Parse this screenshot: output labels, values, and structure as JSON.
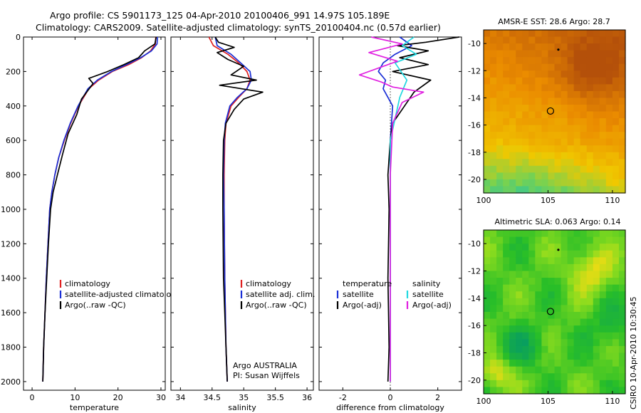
{
  "figure": {
    "title_line1": "Argo profile: CS 5901173_125 04-Apr-2010 20100406_991 14.97S 105.189E",
    "title_line2": "Climatology: CARS2009. Satellite-adjusted climatology: synTS_20100404.nc (0.57d earlier)",
    "credit": "CSIRO 10-Apr-2010 10:30:45",
    "colors": {
      "climatology": "#e02020",
      "satellite": "#1a2fd6",
      "argo": "#000000",
      "satellite_sal": "#20d8e0",
      "argo_adj_sal": "#e020e0"
    }
  },
  "chart_data": [
    {
      "type": "line",
      "name": "temperature",
      "xlabel": "temperature",
      "ylabel": "",
      "xlim": [
        -2,
        31
      ],
      "ylim": [
        2050,
        0
      ],
      "xticks": [
        0,
        10,
        20,
        30
      ],
      "yticks": [
        0,
        200,
        400,
        600,
        800,
        1000,
        1200,
        1400,
        1600,
        1800,
        2000
      ],
      "legend": [
        "climatology",
        "satellite-adjusted climatology",
        "Argo(..raw -QC)"
      ],
      "legend_placement": "lower-right",
      "series": [
        {
          "name": "climatology",
          "color": "climatology",
          "x": [
            28.8,
            28.7,
            27.6,
            25.5,
            22.5,
            18.7,
            15.5,
            13.2,
            10.8,
            9.0,
            7.5,
            6.2,
            5.3,
            4.6,
            4.1,
            3.7,
            3.3,
            3.0,
            2.7,
            2.5
          ],
          "y": [
            0,
            40,
            80,
            120,
            160,
            200,
            250,
            300,
            400,
            500,
            600,
            700,
            800,
            900,
            1000,
            1200,
            1400,
            1600,
            1800,
            2000
          ]
        },
        {
          "name": "satellite-adjusted climatology",
          "color": "satellite",
          "x": [
            29.2,
            29.1,
            27.8,
            25.3,
            22.0,
            18.5,
            15.2,
            13.0,
            10.7,
            8.9,
            7.4,
            6.2,
            5.3,
            4.6,
            4.1,
            3.7,
            3.3,
            3.0,
            2.7,
            2.5
          ],
          "y": [
            0,
            40,
            80,
            120,
            160,
            200,
            250,
            300,
            400,
            500,
            600,
            700,
            800,
            900,
            1000,
            1200,
            1400,
            1600,
            1800,
            2000
          ]
        },
        {
          "name": "Argo(..raw -QC)",
          "color": "argo",
          "x": [
            28.9,
            28.6,
            26.2,
            24.8,
            21.4,
            17.6,
            13.2,
            14.2,
            11.5,
            10.4,
            8.4,
            7.1,
            5.9,
            4.9,
            4.3,
            3.8,
            3.4,
            3.0,
            2.7,
            2.5
          ],
          "y": [
            0,
            40,
            80,
            120,
            160,
            200,
            240,
            270,
            360,
            450,
            560,
            680,
            800,
            900,
            1000,
            1200,
            1400,
            1600,
            1800,
            2000
          ]
        }
      ]
    },
    {
      "type": "line",
      "name": "salinity",
      "xlabel": "salinity",
      "ylabel": "",
      "xlim": [
        33.85,
        36.1
      ],
      "ylim": [
        2050,
        0
      ],
      "xticks": [
        34,
        34.5,
        35,
        35.5,
        36
      ],
      "yticks": [],
      "legend": [
        "climatology",
        "satellite adj. clim.",
        "Argo(..raw -QC)"
      ],
      "legend_placement": "lower-right",
      "annotations": [
        "Argo AUSTRALIA",
        "PI: Susan Wijffels"
      ],
      "series": [
        {
          "name": "climatology",
          "color": "climatology",
          "x": [
            34.45,
            34.52,
            34.75,
            34.92,
            35.05,
            35.1,
            35.05,
            34.92,
            34.8,
            34.72,
            34.7,
            34.69,
            34.69,
            34.7,
            34.72,
            34.74
          ],
          "y": [
            0,
            50,
            100,
            150,
            200,
            250,
            300,
            350,
            400,
            500,
            600,
            800,
            1000,
            1400,
            1800,
            2000
          ]
        },
        {
          "name": "satellite adj. clim.",
          "color": "satellite",
          "x": [
            34.55,
            34.58,
            34.8,
            34.95,
            35.1,
            35.12,
            35.05,
            34.9,
            34.78,
            34.71,
            34.69,
            34.68,
            34.69,
            34.7,
            34.72,
            34.74
          ],
          "y": [
            0,
            50,
            100,
            150,
            200,
            250,
            300,
            350,
            400,
            500,
            600,
            800,
            1000,
            1400,
            1800,
            2000
          ]
        },
        {
          "name": "Argo(..raw -QC)",
          "color": "argo",
          "x": [
            34.55,
            34.6,
            34.85,
            34.58,
            34.75,
            35.0,
            34.8,
            35.2,
            34.62,
            35.3,
            35.0,
            34.85,
            34.72,
            34.68,
            34.67,
            34.67,
            34.68,
            34.7,
            34.72,
            34.74
          ],
          "y": [
            0,
            30,
            60,
            90,
            130,
            170,
            220,
            250,
            280,
            320,
            360,
            420,
            500,
            600,
            800,
            1000,
            1400,
            1600,
            1800,
            2000
          ]
        }
      ]
    },
    {
      "type": "line",
      "name": "difference",
      "xlabel": "difference from climatology",
      "ylabel": "",
      "xlim": [
        -3,
        3
      ],
      "ylim": [
        2050,
        0
      ],
      "xticks": [
        -2,
        0,
        2
      ],
      "yticks": [],
      "legend": [
        "temperature",
        "satellite",
        "Argo(-adj)",
        "salinity",
        "satellite",
        "Argo(-adj)"
      ],
      "legend_placement": "lower-center",
      "series": [
        {
          "name": "temperature satellite",
          "color": "satellite",
          "x": [
            0.4,
            0.9,
            0.2,
            -0.3,
            -0.5,
            -0.2,
            -0.3,
            0.1,
            0.0,
            0.0,
            0.0,
            0.0,
            0.0
          ],
          "y": [
            0,
            50,
            100,
            150,
            200,
            250,
            300,
            400,
            600,
            800,
            1200,
            1600,
            2000
          ]
        },
        {
          "name": "temperature Argo(-adj)",
          "color": "argo",
          "x": [
            2.9,
            1.5,
            0.3,
            1.6,
            0.4,
            1.6,
            0.1,
            1.7,
            1.0,
            0.6,
            0.1,
            0.0,
            -0.1,
            -0.05,
            -0.1,
            -0.05,
            -0.1
          ],
          "y": [
            0,
            30,
            50,
            80,
            120,
            160,
            200,
            250,
            320,
            400,
            500,
            600,
            800,
            1000,
            1400,
            1800,
            2000
          ]
        },
        {
          "name": "salinity satellite",
          "color": "satellite_sal",
          "x": [
            1.0,
            0.5,
            1.1,
            0.2,
            0.7,
            0.4,
            0.0,
            0.0,
            0.0,
            0.0
          ],
          "y": [
            0,
            50,
            100,
            150,
            250,
            350,
            600,
            1000,
            1600,
            2000
          ]
        },
        {
          "name": "salinity Argo(-adj)",
          "color": "argo_adj_sal",
          "x": [
            -0.8,
            0.5,
            -0.9,
            0.3,
            -1.3,
            -0.4,
            0.1,
            1.4,
            0.5,
            0.1,
            0.0,
            0.0,
            0.0
          ],
          "y": [
            0,
            40,
            90,
            140,
            220,
            260,
            290,
            320,
            380,
            500,
            800,
            1400,
            2000
          ]
        }
      ]
    },
    {
      "type": "heatmap",
      "name": "sst_map",
      "title": "AMSR-E SST: 28.6 Argo: 28.7",
      "xlim": [
        100,
        111
      ],
      "ylim": [
        -21,
        -9
      ],
      "xticks": [
        100,
        105,
        110
      ],
      "yticks": [
        -10,
        -12,
        -14,
        -16,
        -18,
        -20
      ],
      "profile_marker": {
        "lon": 105.19,
        "lat": -14.97
      },
      "cell_deg": 0.5
    },
    {
      "type": "heatmap",
      "name": "sla_map",
      "title": "Altimetric SLA: 0.063 Argo: 0.14",
      "xlim": [
        100,
        111
      ],
      "ylim": [
        -21,
        -9
      ],
      "xticks": [
        100,
        105,
        110
      ],
      "yticks": [
        -10,
        -12,
        -14,
        -16,
        -18,
        -20
      ],
      "profile_marker": {
        "lon": 105.19,
        "lat": -14.97
      },
      "cell_deg": 0.5
    }
  ]
}
